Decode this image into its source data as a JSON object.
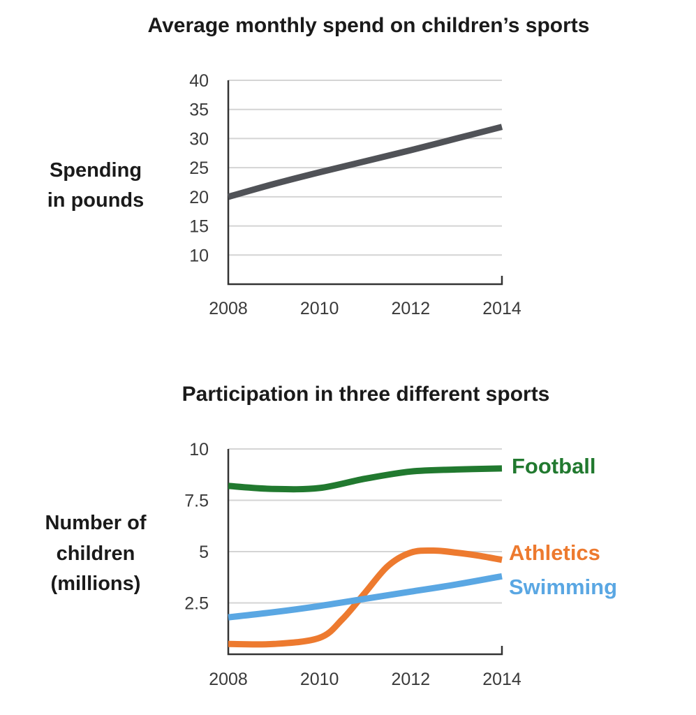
{
  "chart_data": [
    {
      "type": "line",
      "title": "Average monthly spend on children’s sports",
      "ylabel_lines": [
        "Spending",
        "in pounds"
      ],
      "xlabel": "",
      "x": [
        2008,
        2010,
        2012,
        2014
      ],
      "x_tick_labels": [
        "2008",
        "2010",
        "2012",
        "2014"
      ],
      "ylim": [
        5,
        40
      ],
      "y_ticks": [
        10,
        15,
        20,
        25,
        30,
        35,
        40
      ],
      "y_tick_labels": [
        "10",
        "15",
        "20",
        "25",
        "30",
        "35",
        "40"
      ],
      "grid": true,
      "series": [
        {
          "name": "Spending",
          "color": "#505257",
          "x": [
            2008,
            2009,
            2010,
            2011,
            2012,
            2013,
            2014
          ],
          "values": [
            20,
            22.2,
            24.2,
            26.1,
            28,
            30,
            32
          ]
        }
      ]
    },
    {
      "type": "line",
      "title": "Participation in three different sports",
      "ylabel_lines": [
        "Number of",
        "children",
        "(millions)"
      ],
      "xlabel": "",
      "x": [
        2008,
        2010,
        2012,
        2014
      ],
      "x_tick_labels": [
        "2008",
        "2010",
        "2012",
        "2014"
      ],
      "ylim": [
        0,
        10
      ],
      "y_ticks": [
        2.5,
        5,
        7.5,
        10
      ],
      "y_tick_labels": [
        "2.5",
        "5",
        "7.5",
        "10"
      ],
      "grid": true,
      "legend": "right-of-lines",
      "series": [
        {
          "name": "Football",
          "color": "#21792f",
          "x": [
            2008,
            2009,
            2010,
            2011,
            2012,
            2013,
            2014
          ],
          "values": [
            8.2,
            8.05,
            8.1,
            8.55,
            8.9,
            9.0,
            9.05
          ]
        },
        {
          "name": "Athletics",
          "color": "#ed7a2f",
          "x": [
            2008,
            2009,
            2010,
            2010.5,
            2011,
            2011.5,
            2012,
            2012.5,
            2013,
            2013.5,
            2014
          ],
          "values": [
            0.5,
            0.5,
            0.8,
            1.7,
            3.0,
            4.3,
            4.95,
            5.05,
            4.95,
            4.8,
            4.6
          ]
        },
        {
          "name": "Swimming",
          "color": "#5aa7e3",
          "x": [
            2008,
            2009,
            2010,
            2011,
            2012,
            2013,
            2014
          ],
          "values": [
            1.8,
            2.05,
            2.35,
            2.7,
            3.05,
            3.4,
            3.8
          ]
        }
      ]
    }
  ]
}
